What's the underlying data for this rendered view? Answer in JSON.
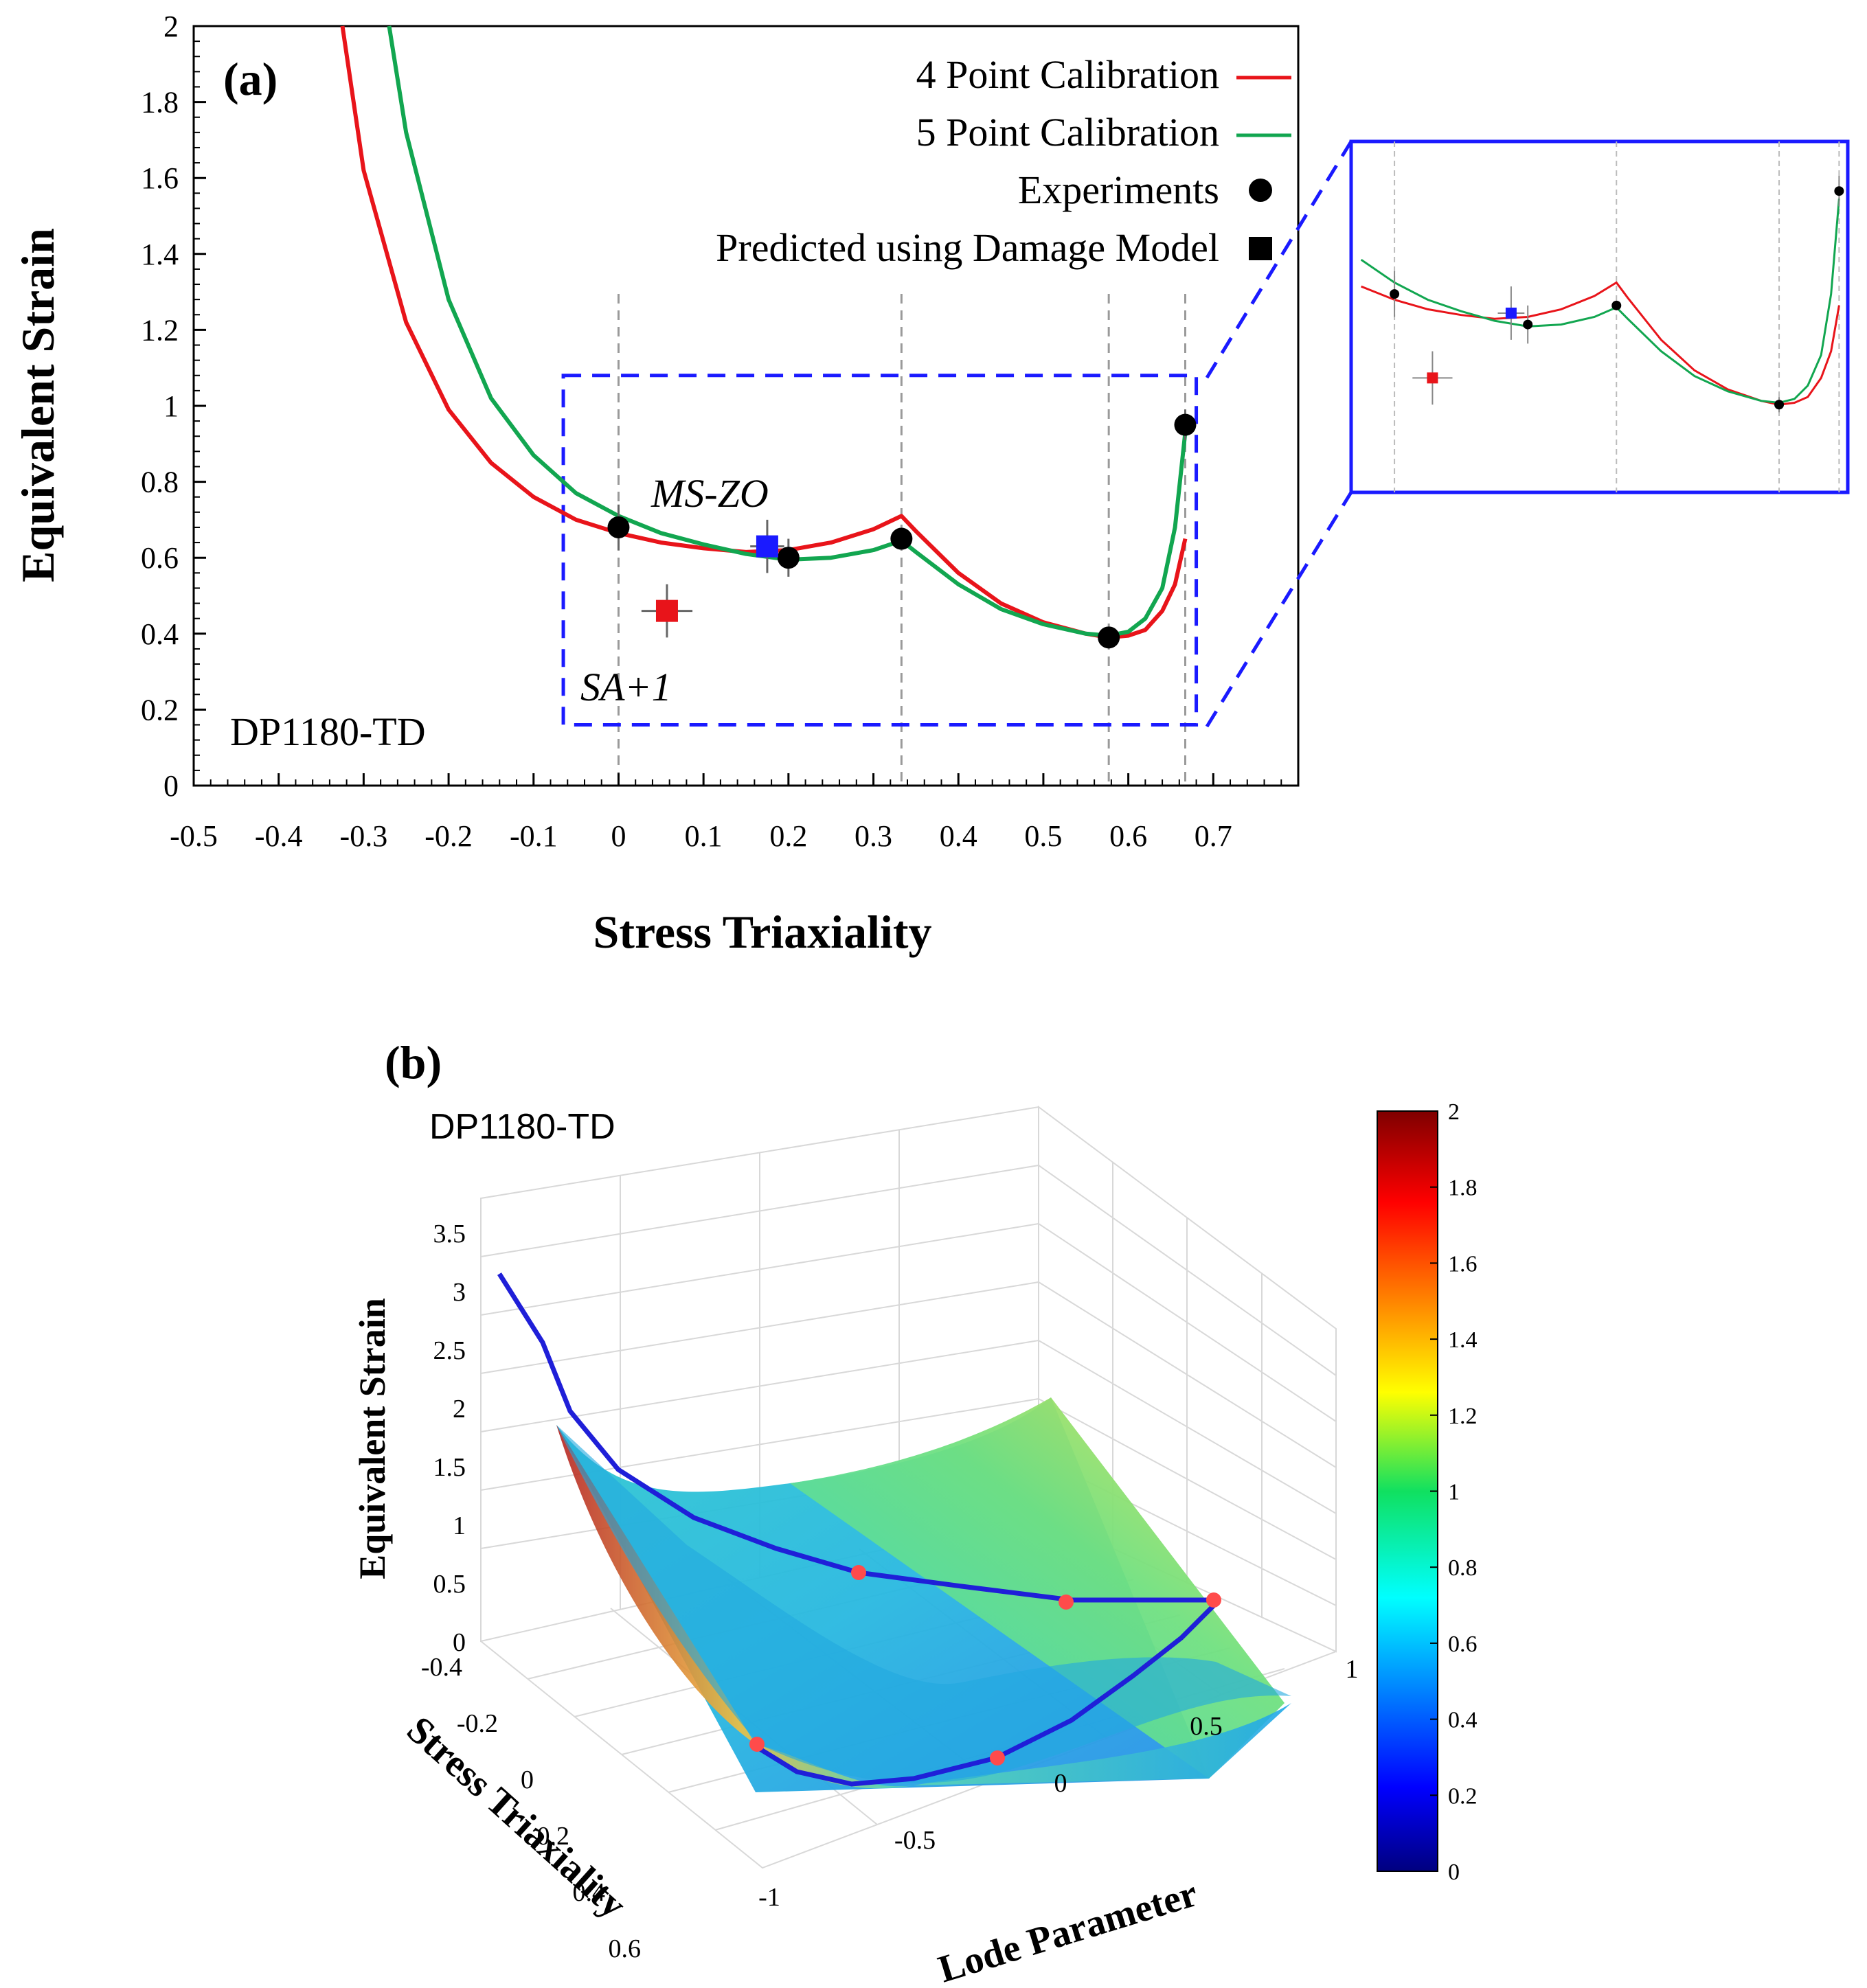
{
  "chart_data": [
    {
      "type": "line",
      "panel_label": "(a)",
      "material_label": "DP1180-TD",
      "xlabel": "Stress Triaxiality",
      "ylabel": "Equivalent Strain",
      "xlim": [
        -0.5,
        0.8
      ],
      "ylim": [
        0,
        2
      ],
      "xticks": [
        "-0.5",
        "-0.4",
        "-0.3",
        "-0.2",
        "-0.1",
        "0",
        "0.1",
        "0.2",
        "0.3",
        "0.4",
        "0.5",
        "0.6",
        "0.7"
      ],
      "yticks": [
        "0",
        "0.2",
        "0.4",
        "0.6",
        "0.8",
        "1",
        "1.2",
        "1.4",
        "1.6",
        "1.8",
        "2"
      ],
      "reference_lines_x": [
        0,
        0.333,
        0.577,
        0.667
      ],
      "legend": {
        "position": "top-right",
        "entries": [
          {
            "label": "4 Point Calibration",
            "marker": "line",
            "color": "#e8141a"
          },
          {
            "label": "5 Point Calibration",
            "marker": "line",
            "color": "#12a650"
          },
          {
            "label": "Experiments",
            "marker": "circle",
            "color": "#000000"
          },
          {
            "label": "Predicted using Damage Model",
            "marker": "square",
            "color": "#000000"
          }
        ]
      },
      "series": [
        {
          "name": "4 Point Calibration",
          "color": "#e8141a",
          "x": [
            -0.325,
            -0.3,
            -0.25,
            -0.2,
            -0.15,
            -0.1,
            -0.05,
            0,
            0.05,
            0.1,
            0.15,
            0.2,
            0.25,
            0.3,
            0.333,
            0.35,
            0.4,
            0.45,
            0.5,
            0.55,
            0.577,
            0.6,
            0.62,
            0.64,
            0.655,
            0.667
          ],
          "y": [
            2.0,
            1.62,
            1.22,
            0.99,
            0.85,
            0.76,
            0.7,
            0.665,
            0.64,
            0.625,
            0.615,
            0.62,
            0.64,
            0.675,
            0.71,
            0.67,
            0.56,
            0.48,
            0.43,
            0.4,
            0.39,
            0.395,
            0.41,
            0.46,
            0.53,
            0.65
          ]
        },
        {
          "name": "5 Point Calibration",
          "color": "#12a650",
          "x": [
            -0.27,
            -0.25,
            -0.2,
            -0.15,
            -0.1,
            -0.05,
            0,
            0.05,
            0.1,
            0.15,
            0.2,
            0.25,
            0.3,
            0.333,
            0.35,
            0.4,
            0.45,
            0.5,
            0.55,
            0.577,
            0.6,
            0.62,
            0.64,
            0.655,
            0.667
          ],
          "y": [
            2.0,
            1.72,
            1.28,
            1.02,
            0.87,
            0.77,
            0.71,
            0.665,
            0.635,
            0.61,
            0.595,
            0.6,
            0.62,
            0.645,
            0.615,
            0.53,
            0.465,
            0.425,
            0.4,
            0.395,
            0.405,
            0.44,
            0.52,
            0.68,
            0.93
          ]
        }
      ],
      "experiments": [
        {
          "x": 0,
          "y": 0.68,
          "yerr": 0.06,
          "xerr": 0
        },
        {
          "x": 0.2,
          "y": 0.6,
          "yerr": 0.05,
          "xerr": 0
        },
        {
          "x": 0.333,
          "y": 0.65,
          "yerr": 0,
          "xerr": 0
        },
        {
          "x": 0.577,
          "y": 0.39,
          "yerr": 0.02,
          "xerr": 0.01
        },
        {
          "x": 0.667,
          "y": 0.95,
          "yerr": 0.04,
          "xerr": 0
        }
      ],
      "predicted": [
        {
          "label": "MS-ZO",
          "x": 0.175,
          "y": 0.63,
          "xerr": 0.02,
          "yerr": 0.07,
          "color": "#1a1aff"
        },
        {
          "label": "SA+1",
          "x": 0.057,
          "y": 0.46,
          "xerr": 0.03,
          "yerr": 0.07,
          "color": "#e8141a"
        }
      ],
      "zoom_box": {
        "x": [
          -0.065,
          0.68
        ],
        "y": [
          0.16,
          1.08
        ],
        "color": "#1a1aff"
      }
    },
    {
      "type": "surface",
      "panel_label": "(b)",
      "material_label": "DP1180-TD",
      "xlabel": "Lode Parameter",
      "ylabel": "Stress Triaxiality",
      "zlabel": "Equivalent Strain",
      "xticks": [
        "-1",
        "-0.5",
        "0",
        "0.5",
        "1"
      ],
      "yticks": [
        "-0.4",
        "-0.2",
        "0",
        "0.2",
        "0.4",
        "0.6"
      ],
      "zticks": [
        "0",
        "0.5",
        "1",
        "1.5",
        "2",
        "2.5",
        "3",
        "3.5"
      ],
      "colorbar": {
        "min": 0,
        "max": 2,
        "ticks": [
          "0",
          "0.2",
          "0.4",
          "0.6",
          "0.8",
          "1",
          "1.2",
          "1.4",
          "1.6",
          "1.8",
          "2"
        ],
        "colormap": "jet"
      },
      "curves": [
        {
          "lode": 0,
          "triax": [
            -0.45,
            -0.35,
            -0.25,
            -0.15,
            -0.05,
            0.05,
            0.15,
            0.25,
            0.33
          ],
          "strain": [
            2.95,
            2.0,
            1.45,
            1.05,
            0.8,
            0.62,
            0.5,
            0.43,
            0.4
          ]
        },
        {
          "lode": -1,
          "triax": [
            0.33,
            0.4,
            0.5,
            0.58,
            0.667
          ],
          "strain": [
            0.65,
            0.5,
            0.42,
            0.39,
            0.95
          ]
        }
      ],
      "points": [
        {
          "lode": 0,
          "triax": 0,
          "strain": 0.68
        },
        {
          "lode": 0,
          "triax": 0.2,
          "strain": 0.6
        },
        {
          "lode": 1,
          "triax": 0.333,
          "strain": 0.65
        },
        {
          "lode": 0,
          "triax": 0.577,
          "strain": 0.39
        },
        {
          "lode": -1,
          "triax": 0.667,
          "strain": 0.95
        }
      ]
    }
  ]
}
